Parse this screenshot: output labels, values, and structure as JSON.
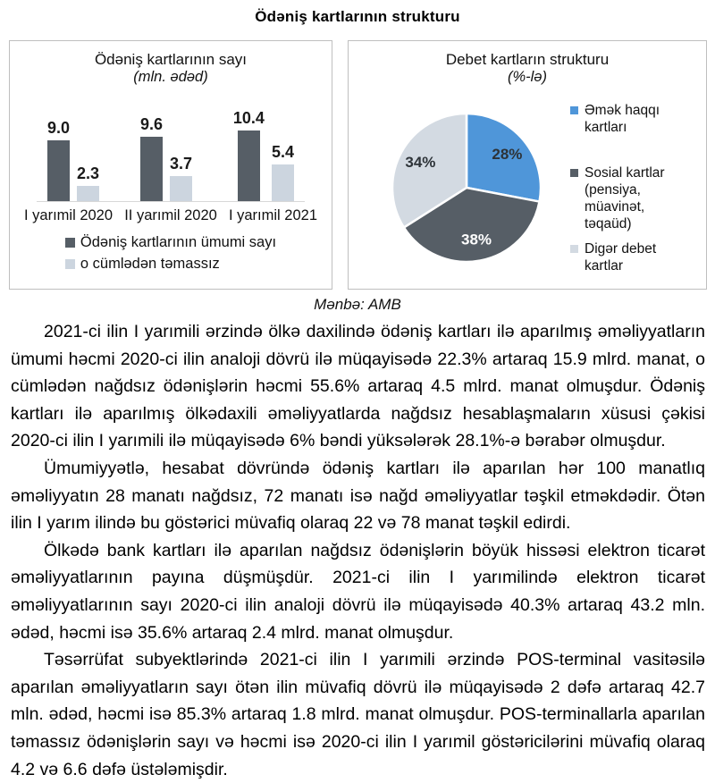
{
  "page": {
    "title": "Ödəniş kartlarının strukturu",
    "source_note": "Mənbə: AMB"
  },
  "chart_data": [
    {
      "type": "bar",
      "title": "Ödəniş kartlarının sayı",
      "subtitle": "(mln. ədəd)",
      "categories": [
        "I yarımil 2020",
        "II yarımil 2020",
        "I yarımil 2021"
      ],
      "series": [
        {
          "name": "Ödəniş kartlarının ümumi sayı",
          "color": "#565e66",
          "values": [
            9.0,
            9.6,
            10.4
          ]
        },
        {
          "name": "o cümlədən təmassız",
          "color": "#ccd5df",
          "values": [
            2.3,
            3.7,
            5.4
          ]
        }
      ],
      "ylim": [
        0,
        11
      ],
      "gridlines": false,
      "value_labels": true,
      "legend_position": "bottom"
    },
    {
      "type": "pie",
      "title": "Debet kartların strukturu",
      "subtitle": "(%-lə)",
      "slices": [
        {
          "label": "Əmək haqqı kartları",
          "value": 28,
          "color": "#4f96d9",
          "label_color": "#2d3338"
        },
        {
          "label": "Sosial kartlar (pensiya, müavinət, təqaüd)",
          "value": 38,
          "color": "#565e66",
          "label_color": "#ffffff"
        },
        {
          "label": "Digər debet kartlar",
          "value": 34,
          "color": "#d3dae2",
          "label_color": "#2d3338"
        }
      ],
      "start_angle_deg": 0,
      "direction": "clockwise",
      "legend_position": "right"
    }
  ],
  "paragraphs": [
    "2021-ci ilin I yarımili ərzində ölkə daxilində ödəniş kartları ilə aparılmış əməliyyatların ümumi həcmi 2020-ci ilin analoji dövrü ilə müqayisədə 22.3% artaraq 15.9 mlrd. manat, o cümlədən nağdsız ödənişlərin həcmi 55.6% artaraq 4.5 mlrd. manat olmuşdur. Ödəniş kartları ilə aparılmış ölkədaxili əməliyyatlarda nağdsız hesablaşmaların xüsusi çəkisi 2020-ci ilin I yarımili ilə müqayisədə 6% bəndi yüksələrək 28.1%-ə bərabər olmuşdur.",
    "Ümumiyyətlə, hesabat dövründə ödəniş kartları ilə aparılan hər 100 manatlıq əməliyyatın 28 manatı nağdsız, 72 manatı isə nağd əməliyyatlar təşkil etməkdədir. Ötən ilin I yarım ilində bu göstərici müvafiq olaraq 22 və 78 manat təşkil edirdi.",
    "Ölkədə bank kartları ilə aparılan nağdsız ödənişlərin böyük hissəsi elektron ticarət əməliyyatlarının payına düşmüşdür. 2021-ci ilin I yarımilində elektron ticarət əməliyyatlarının sayı 2020-ci ilin analoji dövrü ilə müqayisədə 40.3% artaraq 43.2 mln. ədəd, həcmi isə 35.6% artaraq 2.4 mlrd. manat olmuşdur.",
    "Təsərrüfat subyektlərində 2021-ci ilin I yarımili ərzində POS-terminal vasitəsilə aparılan əməliyyatların sayı ötən ilin müvafiq dövrü ilə müqayisədə 2 dəfə artaraq 42.7 mln. ədəd, həcmi isə 85.3% artaraq 1.8 mlrd. manat olmuşdur. POS-terminallarla aparılan təmassız ödənişlərin sayı və həcmi isə 2020-ci ilin I yarımil göstəricilərini müvafiq olaraq 4.2 və 6.6 dəfə üstələmişdir."
  ]
}
